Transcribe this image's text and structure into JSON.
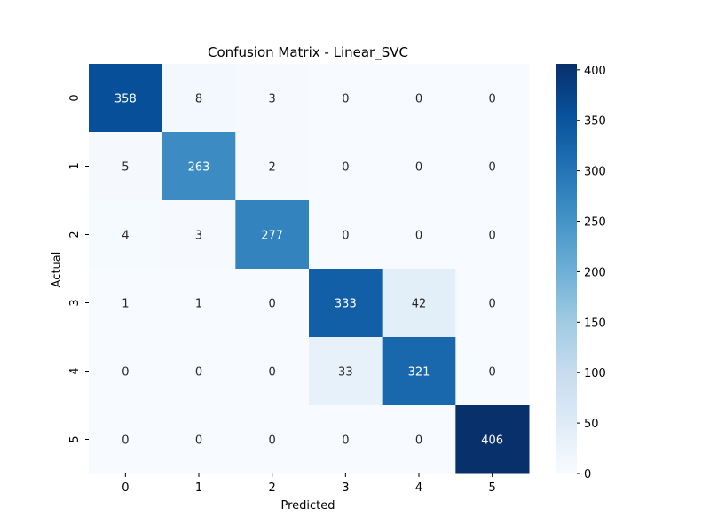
{
  "chart_data": {
    "type": "heatmap",
    "title": "Confusion Matrix - Linear_SVC",
    "xlabel": "Predicted",
    "ylabel": "Actual",
    "x_categories": [
      "0",
      "1",
      "2",
      "3",
      "4",
      "5"
    ],
    "y_categories": [
      "0",
      "1",
      "2",
      "3",
      "4",
      "5"
    ],
    "values": [
      [
        358,
        8,
        3,
        0,
        0,
        0
      ],
      [
        5,
        263,
        2,
        0,
        0,
        0
      ],
      [
        4,
        3,
        277,
        0,
        0,
        0
      ],
      [
        1,
        1,
        0,
        333,
        42,
        0
      ],
      [
        0,
        0,
        0,
        33,
        321,
        0
      ],
      [
        0,
        0,
        0,
        0,
        0,
        406
      ]
    ],
    "colormap": "Blues",
    "colorbar": {
      "range": [
        0,
        406
      ],
      "ticks": [
        0,
        50,
        100,
        150,
        200,
        250,
        300,
        350,
        400
      ]
    },
    "annotations": true,
    "grid": false
  }
}
